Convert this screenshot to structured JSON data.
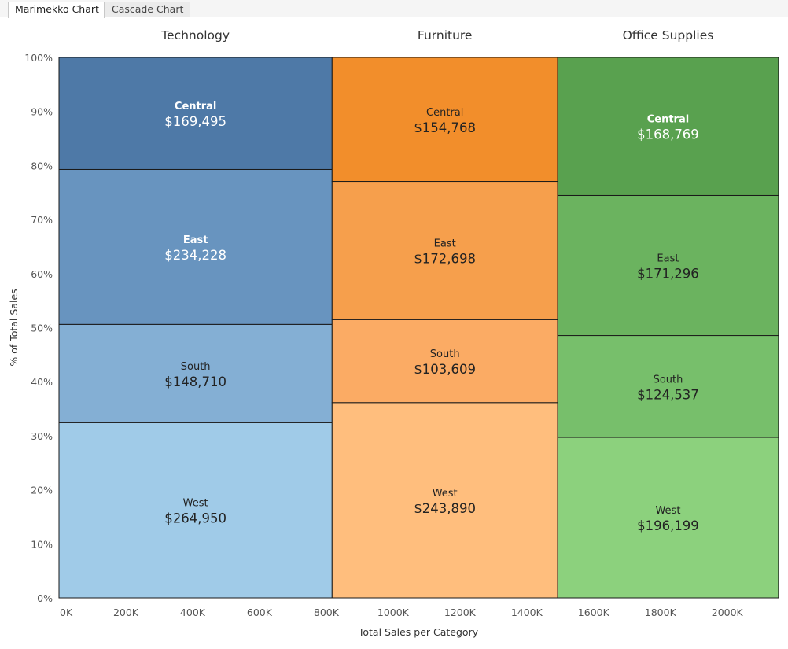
{
  "tabs": [
    {
      "label": "Marimekko Chart",
      "active": true
    },
    {
      "label": "Cascade Chart",
      "active": false
    }
  ],
  "chart_data": {
    "type": "marimekko",
    "xlabel": "Total Sales per Category",
    "ylabel": "% of Total Sales",
    "x_range": [
      0,
      2170000
    ],
    "x_ticks": [
      {
        "value": 0,
        "label": "0K"
      },
      {
        "value": 200000,
        "label": "200K"
      },
      {
        "value": 400000,
        "label": "400K"
      },
      {
        "value": 600000,
        "label": "600K"
      },
      {
        "value": 800000,
        "label": "800K"
      },
      {
        "value": 1000000,
        "label": "1000K"
      },
      {
        "value": 1200000,
        "label": "1200K"
      },
      {
        "value": 1400000,
        "label": "1400K"
      },
      {
        "value": 1600000,
        "label": "1600K"
      },
      {
        "value": 1800000,
        "label": "1800K"
      },
      {
        "value": 2000000,
        "label": "2000K"
      }
    ],
    "y_ticks": [
      "0%",
      "10%",
      "20%",
      "30%",
      "40%",
      "50%",
      "60%",
      "70%",
      "80%",
      "90%",
      "100%"
    ],
    "categories": [
      {
        "name": "Technology",
        "segments": [
          {
            "region": "West",
            "label": "$264,950",
            "value": 264950,
            "color": "#a0cbe8",
            "text_color": "#222222",
            "bold": false
          },
          {
            "region": "South",
            "label": "$148,710",
            "value": 148710,
            "color": "#84afd4",
            "text_color": "#222222",
            "bold": false
          },
          {
            "region": "East",
            "label": "$234,228",
            "value": 234228,
            "color": "#6894bf",
            "text_color": "#ffffff",
            "bold": true
          },
          {
            "region": "Central",
            "label": "$169,495",
            "value": 169495,
            "color": "#4e79a7",
            "text_color": "#ffffff",
            "bold": true
          }
        ]
      },
      {
        "name": "Furniture",
        "segments": [
          {
            "region": "West",
            "label": "$243,890",
            "value": 243890,
            "color": "#ffbe7d",
            "text_color": "#222222",
            "bold": false
          },
          {
            "region": "South",
            "label": "$103,609",
            "value": 103609,
            "color": "#fbab64",
            "text_color": "#222222",
            "bold": false
          },
          {
            "region": "East",
            "label": "$172,698",
            "value": 172698,
            "color": "#f69f4c",
            "text_color": "#222222",
            "bold": false
          },
          {
            "region": "Central",
            "label": "$154,768",
            "value": 154768,
            "color": "#f28e2b",
            "text_color": "#222222",
            "bold": false
          }
        ]
      },
      {
        "name": "Office Supplies",
        "segments": [
          {
            "region": "West",
            "label": "$196,199",
            "value": 196199,
            "color": "#8cd17d",
            "text_color": "#222222",
            "bold": false
          },
          {
            "region": "South",
            "label": "$124,537",
            "value": 124537,
            "color": "#77bf6b",
            "text_color": "#222222",
            "bold": false
          },
          {
            "region": "East",
            "label": "$171,296",
            "value": 171296,
            "color": "#6bb35f",
            "text_color": "#222222",
            "bold": false
          },
          {
            "region": "Central",
            "label": "$168,769",
            "value": 168769,
            "color": "#59a14f",
            "text_color": "#ffffff",
            "bold": true
          }
        ]
      }
    ]
  }
}
